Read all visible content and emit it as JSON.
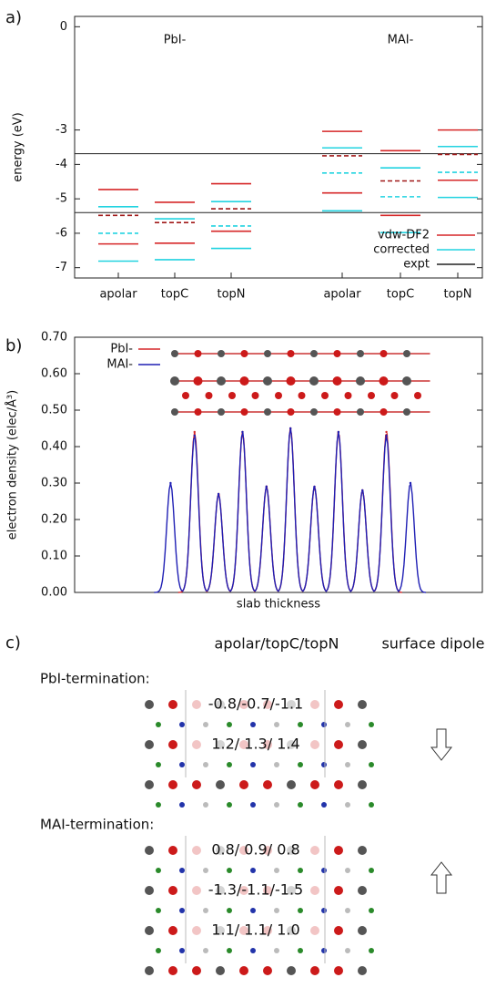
{
  "chart_data": [
    {
      "type": "levels",
      "panel": "a)",
      "ylabel": "energy (eV)",
      "categories": [
        "apolar",
        "topC",
        "topN",
        "apolar",
        "topC",
        "topN"
      ],
      "groups": [
        "PbI-",
        "MAI-"
      ],
      "ylim": [
        -7.3,
        0.3
      ],
      "yticks": [
        0,
        -3,
        -4,
        -5,
        -6,
        -7
      ],
      "series": [
        {
          "name": "vdw-DF2",
          "color": "#d62728",
          "dashed": false,
          "values": [
            [
              -4.73,
              -6.31
            ],
            [
              -5.1,
              -6.29
            ],
            [
              -4.56,
              -5.94
            ],
            [
              -3.04,
              -4.83
            ],
            [
              -3.6,
              -5.48
            ],
            [
              -3.0,
              -4.46
            ]
          ]
        },
        {
          "name": "corrected",
          "color": "#22d3e0",
          "dashed": false,
          "values": [
            [
              -5.23,
              -6.81
            ],
            [
              -5.58,
              -6.77
            ],
            [
              -5.08,
              -6.44
            ],
            [
              -3.52,
              -5.35
            ],
            [
              -4.1,
              -5.98
            ],
            [
              -3.48,
              -4.96
            ]
          ]
        },
        {
          "color": "#a01818",
          "dashed": true,
          "values": [
            [
              -5.48
            ],
            [
              -5.69
            ],
            [
              -5.29
            ],
            [
              -3.75
            ],
            [
              -4.48
            ],
            [
              -3.71
            ]
          ]
        },
        {
          "color": "#22d3e0",
          "dashed": true,
          "values": [
            [
              -6.0
            ],
            [],
            [
              -5.79
            ],
            [
              -4.25
            ],
            [
              -4.94
            ],
            [
              -4.23
            ]
          ]
        }
      ],
      "expt": {
        "name": "expt",
        "color": "#222222",
        "values": [
          -3.69,
          -5.4
        ]
      }
    },
    {
      "type": "peaks",
      "panel": "b)",
      "ylabel": "electron density (elec/Å³)",
      "xlabel": "slab thickness",
      "xlim": [
        0,
        17
      ],
      "ylim": [
        0,
        0.7
      ],
      "yticks": [
        {
          "value": 0,
          "label": "0.00"
        },
        {
          "value": 0.1,
          "label": "0.10"
        },
        {
          "value": 0.2,
          "label": "0.20"
        },
        {
          "value": 0.3,
          "label": "0.30"
        },
        {
          "value": 0.4,
          "label": "0.40"
        },
        {
          "value": 0.5,
          "label": "0.50"
        },
        {
          "value": 0.6,
          "label": "0.60"
        },
        {
          "value": 0.7,
          "label": "0.70"
        }
      ],
      "x": [
        4,
        5,
        6,
        7,
        8,
        9,
        10,
        11,
        12,
        13,
        14
      ],
      "series": [
        {
          "name": "PbI-",
          "color": "#d62728",
          "values": [
            null,
            0.44,
            0.27,
            0.44,
            0.29,
            0.45,
            0.29,
            0.44,
            0.28,
            0.44,
            null
          ]
        },
        {
          "name": "MAI-",
          "color": "#1f1fb4",
          "values": [
            0.3,
            0.43,
            0.27,
            0.44,
            0.29,
            0.45,
            0.29,
            0.44,
            0.28,
            0.43,
            0.3
          ]
        }
      ]
    }
  ],
  "panel_c": {
    "panel": "c)",
    "heading": "apolar/topC/topN",
    "dipole_heading": "surface dipole",
    "sections": [
      {
        "title": "PbI-termination:",
        "rows": [
          "-0.8/-0.7/-1.1",
          "1.2/ 1.3/ 1.4"
        ]
      },
      {
        "title": "MAI-termination:",
        "rows": [
          "0.8/ 0.9/ 0.8",
          "-1.3/-1.1/-1.5",
          "1.1/ 1.1/ 1.0"
        ]
      }
    ]
  }
}
